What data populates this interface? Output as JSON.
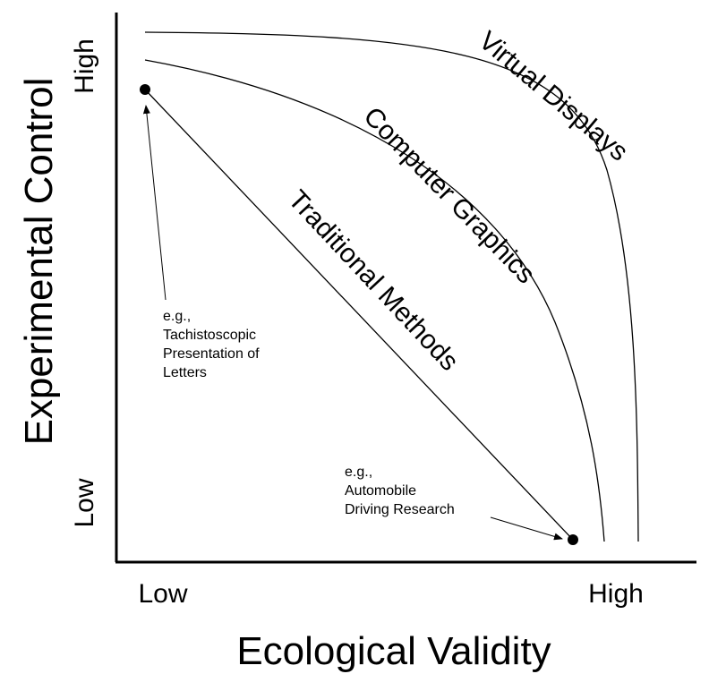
{
  "axes": {
    "y_label": "Experimental Control",
    "x_label": "Ecological Validity",
    "y_ticks": [
      "High",
      "Low"
    ],
    "x_ticks": [
      "Low",
      "High"
    ]
  },
  "curves": [
    {
      "label": "Virtual Displays"
    },
    {
      "label": "Computer Graphics"
    },
    {
      "label": "Traditional Methods"
    }
  ],
  "annotations": [
    {
      "lines": [
        "e.g.,",
        "Tachistoscopic",
        "Presentation of",
        "Letters"
      ]
    },
    {
      "lines": [
        "e.g.,",
        "Automobile",
        "Driving Research"
      ]
    }
  ]
}
